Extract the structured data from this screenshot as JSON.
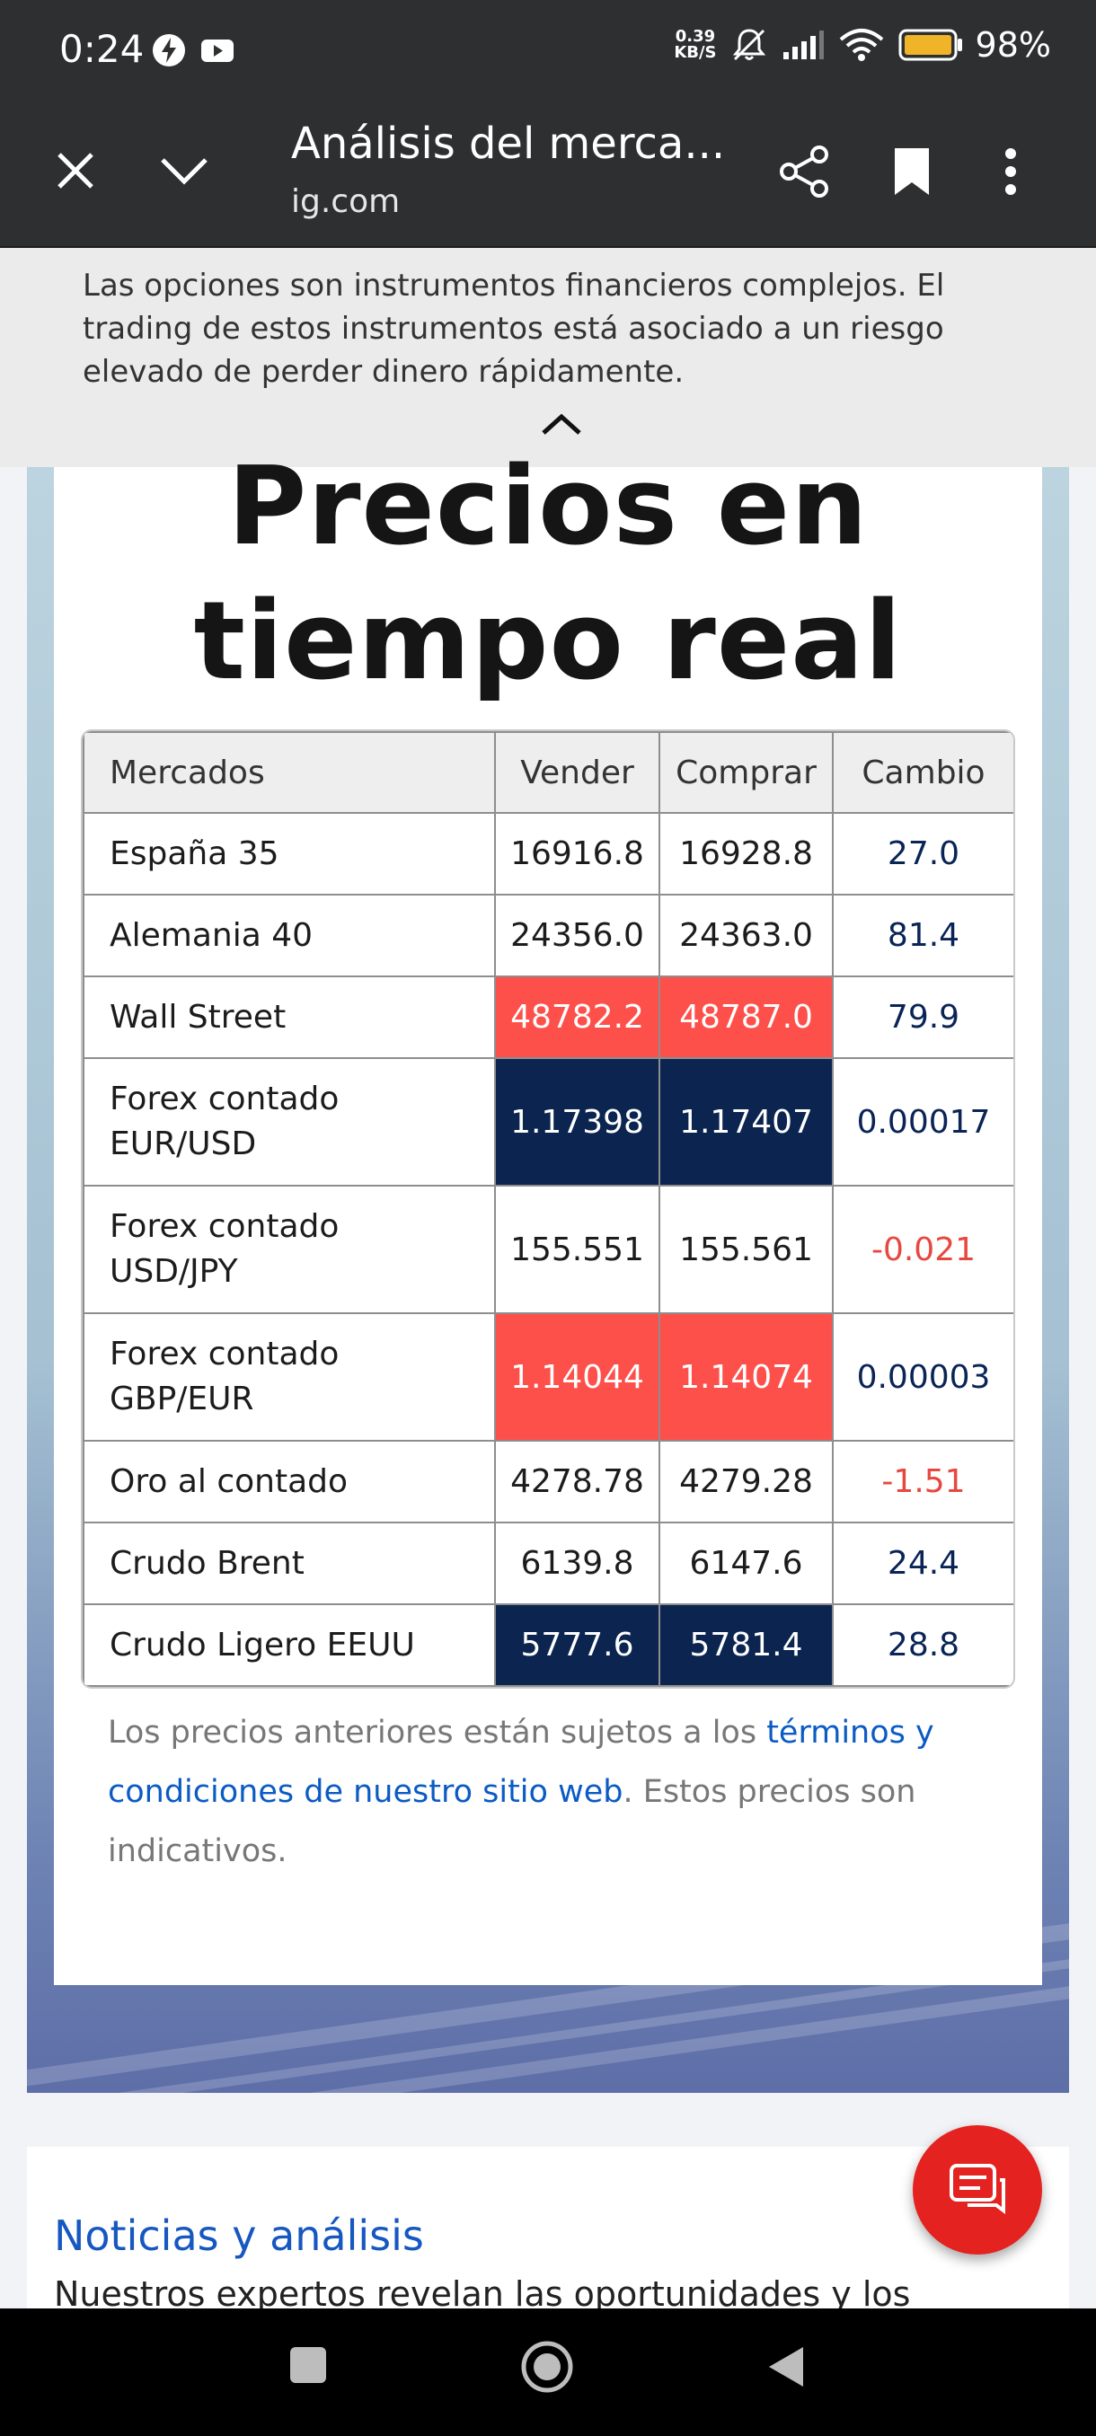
{
  "status_bar": {
    "time": "0:24",
    "speed_value": "0.39",
    "speed_unit": "KB/S",
    "battery": "98%",
    "icons": [
      "flash-icon",
      "youtube-icon",
      "mute-icon",
      "signal-icon",
      "wifi-icon",
      "battery-icon"
    ]
  },
  "browser": {
    "title": "Análisis del merca...",
    "domain": "ig.com",
    "icons": [
      "close-icon",
      "chevron-down-icon",
      "share-icon",
      "bookmark-icon",
      "more-vert-icon"
    ]
  },
  "warning": {
    "text": "Las opciones son instrumentos financieros complejos. El trading de estos instrumentos está asociado a un riesgo elevado de perder dinero rápidamente."
  },
  "prices": {
    "heading_line1": "Precios en",
    "heading_line2": "tiempo real",
    "headers": {
      "market": "Mercados",
      "sell": "Vender",
      "buy": "Comprar",
      "change": "Cambio"
    },
    "rows": [
      {
        "market": "España 35",
        "sell": "16916.8",
        "buy": "16928.8",
        "change": "27.0"
      },
      {
        "market": "Alemania 40",
        "sell": "24356.0",
        "buy": "24363.0",
        "change": "81.4"
      },
      {
        "market": "Wall Street",
        "sell": "48782.2",
        "buy": "48787.0",
        "change": "79.9"
      },
      {
        "market_line1": "Forex contado",
        "market_line2": "EUR/USD",
        "sell": "1.17398",
        "buy": "1.17407",
        "change": "0.00017"
      },
      {
        "market_line1": "Forex contado",
        "market_line2": "USD/JPY",
        "sell": "155.551",
        "buy": "155.561",
        "change": "-0.021"
      },
      {
        "market_line1": "Forex contado",
        "market_line2": "GBP/EUR",
        "sell": "1.14044",
        "buy": "1.14074",
        "change": "0.00003"
      },
      {
        "market": "Oro al contado",
        "sell": "4278.78",
        "buy": "4279.28",
        "change": "-1.51"
      },
      {
        "market": "Crudo Brent",
        "sell": "6139.8",
        "buy": "6147.6",
        "change": "24.4"
      },
      {
        "market": "Crudo Ligero EEUU",
        "sell": "5777.6",
        "buy": "5781.4",
        "change": "28.8"
      }
    ],
    "colors": {
      "flash_up_red": "#fd504b",
      "flash_down_navy": "#0b2550",
      "negative": "#e8473f",
      "positive": "#0a2456"
    },
    "note_part1": "Los precios anteriores están sujetos a los ",
    "note_link": "términos y condiciones de nuestro sitio web",
    "note_part2": ". Estos precios son indicativos."
  },
  "news": {
    "title": "Noticias y análisis",
    "subtitle": "Nuestros expertos revelan las oportunidades y los"
  },
  "fab": {
    "icon": "chat-icon"
  },
  "nav": {
    "icons": [
      "recents-square-icon",
      "home-circle-icon",
      "back-triangle-icon"
    ]
  }
}
